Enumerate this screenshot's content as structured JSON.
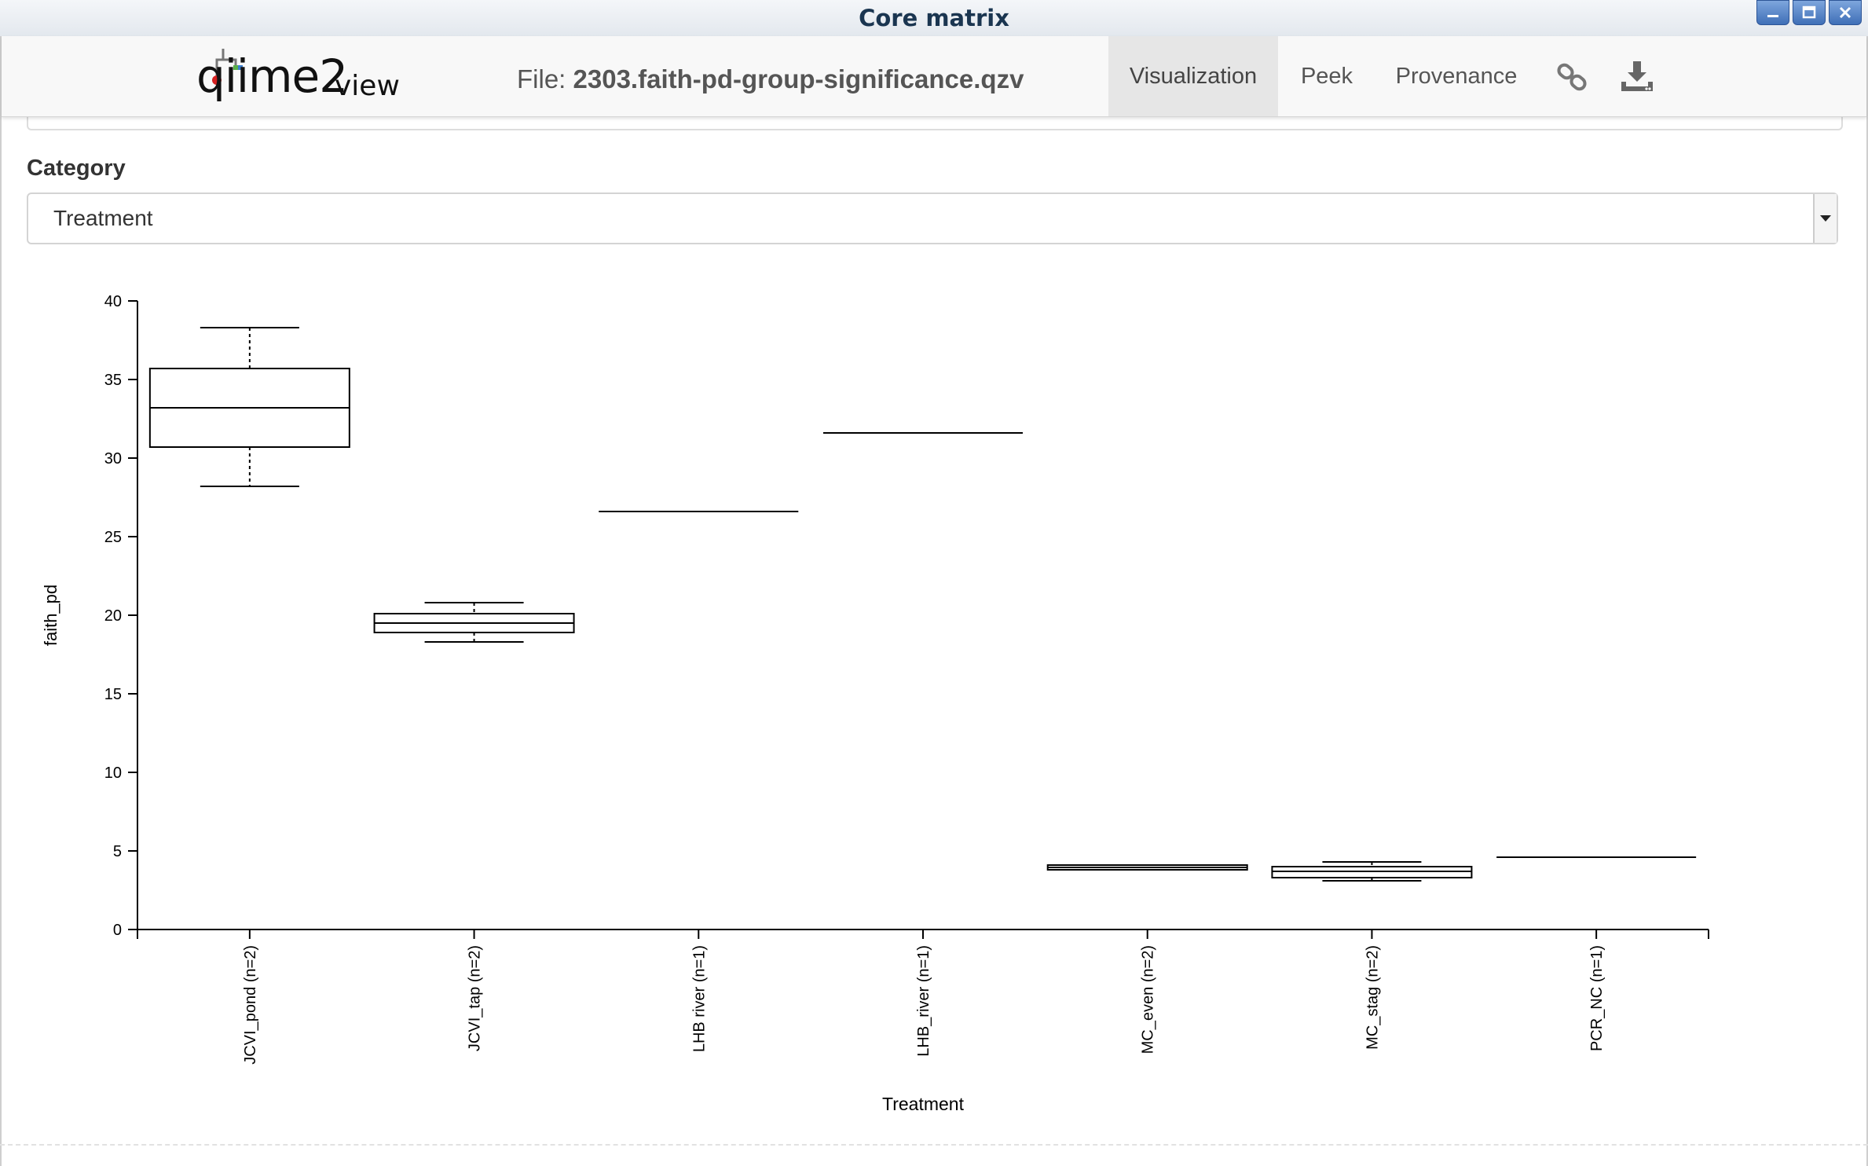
{
  "window": {
    "title": "Core matrix"
  },
  "header": {
    "logo_main": "qiime2",
    "logo_sub": "view",
    "file_prefix": "File:",
    "file_name": "2303.faith-pd-group-significance.qzv",
    "tabs": [
      {
        "label": "Visualization",
        "active": true
      },
      {
        "label": "Peek",
        "active": false
      },
      {
        "label": "Provenance",
        "active": false
      }
    ],
    "icons": [
      "link-icon",
      "download-icon"
    ]
  },
  "category": {
    "label": "Category",
    "selected": "Treatment"
  },
  "chart_data": {
    "type": "boxplot",
    "xlabel": "Treatment",
    "ylabel": "faith_pd",
    "ylim": [
      0,
      40
    ],
    "yticks": [
      0,
      5,
      10,
      15,
      20,
      25,
      30,
      35,
      40
    ],
    "categories": [
      "JCVI_pond (n=2)",
      "JCVI_tap (n=2)",
      "LHB river (n=1)",
      "LHB_river (n=1)",
      "MC_even (n=2)",
      "MC_stag (n=2)",
      "PCR_NC (n=1)"
    ],
    "boxes": [
      {
        "min": 28.2,
        "q1": 30.7,
        "median": 33.2,
        "q3": 35.7,
        "max": 38.3
      },
      {
        "min": 18.3,
        "q1": 18.9,
        "median": 19.5,
        "q3": 20.1,
        "max": 20.8
      },
      {
        "min": 26.6,
        "q1": 26.6,
        "median": 26.6,
        "q3": 26.6,
        "max": 26.6
      },
      {
        "min": 31.6,
        "q1": 31.6,
        "median": 31.6,
        "q3": 31.6,
        "max": 31.6
      },
      {
        "min": 3.8,
        "q1": 3.8,
        "median": 3.95,
        "q3": 4.1,
        "max": 4.1
      },
      {
        "min": 3.1,
        "q1": 3.3,
        "median": 3.7,
        "q3": 4.0,
        "max": 4.3
      },
      {
        "min": 4.6,
        "q1": 4.6,
        "median": 4.6,
        "q3": 4.6,
        "max": 4.6
      }
    ]
  }
}
